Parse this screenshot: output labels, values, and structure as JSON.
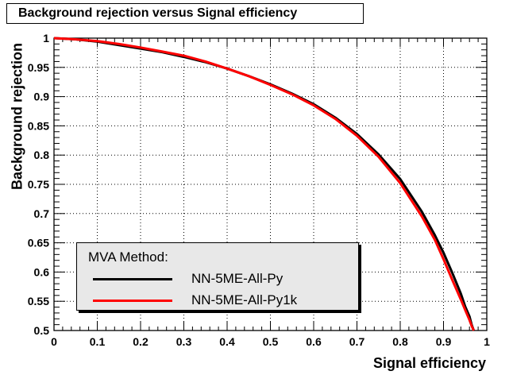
{
  "chart_data": {
    "type": "line",
    "title": "Background rejection versus Signal efficiency",
    "xlabel": "Signal efficiency",
    "ylabel": "Background rejection",
    "xlim": [
      0,
      1
    ],
    "ylim": [
      0.5,
      1
    ],
    "xticks": [
      "0",
      "0.1",
      "0.2",
      "0.3",
      "0.4",
      "0.5",
      "0.6",
      "0.7",
      "0.8",
      "0.9",
      "1"
    ],
    "yticks": [
      "0.5",
      "0.55",
      "0.6",
      "0.65",
      "0.7",
      "0.75",
      "0.8",
      "0.85",
      "0.9",
      "0.95",
      "1"
    ],
    "grid": true,
    "legend_position": "bottom-left",
    "legend_header": "MVA Method:",
    "series": [
      {
        "name": "NN-5ME-All-Py",
        "color": "#000000",
        "x": [
          0.0,
          0.05,
          0.1,
          0.15,
          0.2,
          0.25,
          0.3,
          0.35,
          0.4,
          0.45,
          0.5,
          0.55,
          0.6,
          0.65,
          0.7,
          0.75,
          0.8,
          0.85,
          0.88,
          0.9,
          0.92,
          0.94,
          0.95,
          0.96,
          0.965,
          0.97
        ],
        "y": [
          1.0,
          0.998,
          0.994,
          0.988,
          0.982,
          0.976,
          0.968,
          0.959,
          0.948,
          0.935,
          0.921,
          0.905,
          0.887,
          0.864,
          0.836,
          0.801,
          0.759,
          0.703,
          0.663,
          0.633,
          0.599,
          0.563,
          0.541,
          0.524,
          0.51,
          0.5
        ]
      },
      {
        "name": "NN-5ME-All-Py1k",
        "color": "#ff0000",
        "x": [
          0.0,
          0.05,
          0.1,
          0.15,
          0.2,
          0.25,
          0.3,
          0.35,
          0.4,
          0.45,
          0.5,
          0.55,
          0.6,
          0.65,
          0.7,
          0.75,
          0.8,
          0.85,
          0.88,
          0.9,
          0.92,
          0.94,
          0.95,
          0.96,
          0.965,
          0.97
        ],
        "y": [
          1.0,
          0.998,
          0.995,
          0.99,
          0.984,
          0.977,
          0.97,
          0.96,
          0.948,
          0.935,
          0.92,
          0.904,
          0.885,
          0.862,
          0.833,
          0.797,
          0.752,
          0.695,
          0.655,
          0.622,
          0.587,
          0.553,
          0.535,
          0.518,
          0.508,
          0.5
        ]
      }
    ]
  }
}
